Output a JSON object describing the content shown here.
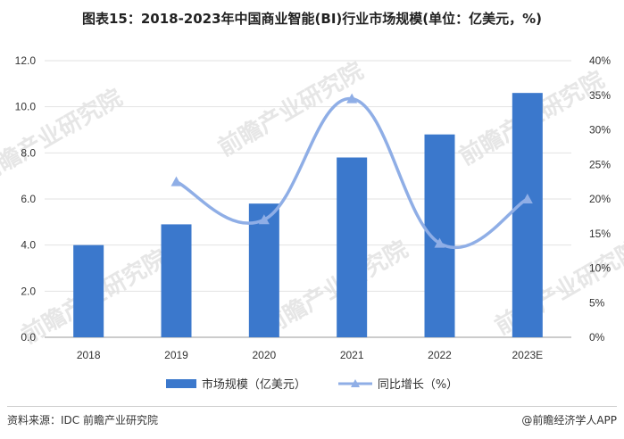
{
  "title": "图表15：2018-2023年中国商业智能(BI)行业市场规模(单位：亿美元，%)",
  "chart_data": {
    "type": "bar",
    "categories": [
      "2018",
      "2019",
      "2020",
      "2021",
      "2022",
      "2023E"
    ],
    "series": [
      {
        "name": "市场规模（亿美元）",
        "type": "bar",
        "axis": "left",
        "color": "#3b78cc",
        "values": [
          4.0,
          4.9,
          5.8,
          7.8,
          8.8,
          10.6
        ]
      },
      {
        "name": "同比增长（%）",
        "type": "line",
        "axis": "right",
        "color": "#8faee6",
        "values": [
          null,
          22.5,
          17.0,
          34.5,
          13.6,
          20.0
        ]
      }
    ],
    "y_left": {
      "min": 0,
      "max": 12,
      "ticks": [
        "0.0",
        "2.0",
        "4.0",
        "6.0",
        "8.0",
        "10.0",
        "12.0"
      ]
    },
    "y_right": {
      "min": 0,
      "max": 40,
      "ticks": [
        "0%",
        "5%",
        "10%",
        "15%",
        "20%",
        "25%",
        "30%",
        "35%",
        "40%"
      ]
    },
    "grid": true,
    "legend_position": "bottom"
  },
  "legend": {
    "bar_label": "市场规模（亿美元）",
    "line_label": "同比增长（%）"
  },
  "footer": {
    "source": "资料来源：IDC 前瞻产业研究院",
    "brand": "@前瞻经济学人APP"
  },
  "watermark": "前瞻产业研究院"
}
